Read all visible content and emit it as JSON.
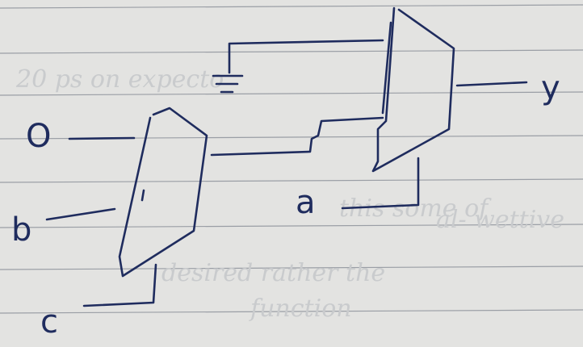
{
  "paper": {
    "background": "#e3e3e1",
    "ruling": "#9a9ea5",
    "ink": "#1f2c5e",
    "bleed_color": "#c9cbcd"
  },
  "labels": {
    "input_0": "O",
    "input_b": "b",
    "input_c": "c",
    "select_a": "a",
    "output_y": "y"
  },
  "bleed_through": {
    "line1": "20 ps on expecto",
    "line2": "this some of",
    "line3": "al- wettive",
    "line4": "desired rather the",
    "line5": "function"
  },
  "symbols": {
    "ground": "ground-symbol",
    "mux_1": "multiplexer",
    "mux_2": "multiplexer"
  }
}
